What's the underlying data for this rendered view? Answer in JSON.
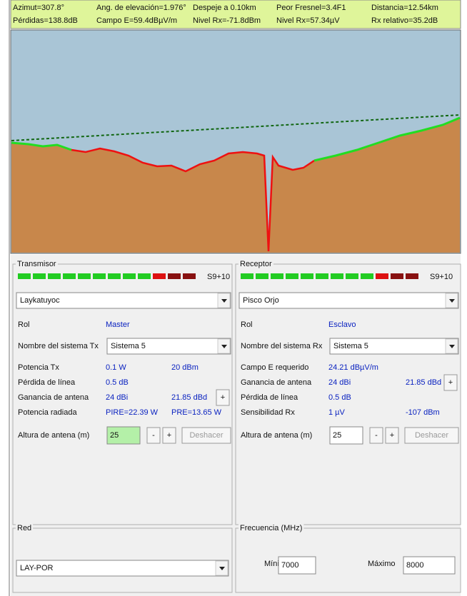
{
  "header": {
    "row1": [
      "Azimut=307.8°",
      "Ang. de elevación=1.976°",
      "Despeje a 0.10km",
      "Peor Fresnel=3.4F1",
      "Distancia=12.54km"
    ],
    "row2": [
      "Pérdidas=138.8dB",
      "Campo E=59.4dBµV/m",
      "Nivel Rx=-71.8dBm",
      "Nivel Rx=57.34µV",
      "Rx relativo=35.2dB"
    ]
  },
  "transmitter": {
    "title": "Transmisor",
    "level": "S9+10",
    "site": "Laykatuyoc",
    "rol_label": "Rol",
    "rol": "Master",
    "system_label": "Nombre del sistema Tx",
    "system": "Sistema  5",
    "rows": [
      [
        "Potencia Tx",
        "0.1 W",
        "20 dBm"
      ],
      [
        "Pérdida de línea",
        "0.5 dB"
      ],
      [
        "Ganancia de antena",
        "24 dBi",
        "21.85 dBd"
      ],
      [
        "Potencia radiada",
        "PIRE=22.39 W",
        "PRE=13.65 W"
      ]
    ],
    "height_label": "Altura de antena (m)",
    "height": "25",
    "minus": "-",
    "plus": "+",
    "undo": "Deshacer"
  },
  "receiver": {
    "title": "Receptor",
    "level": "S9+10",
    "site": "Pisco Orjo",
    "rol_label": "Rol",
    "rol": "Esclavo",
    "system_label": "Nombre del sistema Rx",
    "system": "Sistema  5",
    "rows": [
      [
        "Campo E requerido",
        "24.21 dBµV/m"
      ],
      [
        "Ganancia de antena",
        "24 dBi",
        "21.85 dBd"
      ],
      [
        "Pérdida de línea",
        "0.5 dB"
      ],
      [
        "Sensibilidad Rx",
        "1 µV",
        "-107 dBm"
      ]
    ],
    "height_label": "Altura de antena (m)",
    "height": "25",
    "minus": "-",
    "plus": "+",
    "undo": "Deshacer"
  },
  "network": {
    "title": "Red",
    "value": "LAY-POR"
  },
  "frequency": {
    "title": "Frecuencia (MHz)",
    "min_label": "Mínimo",
    "min": "7000",
    "max_label": "Máximo",
    "max": "8000"
  }
}
